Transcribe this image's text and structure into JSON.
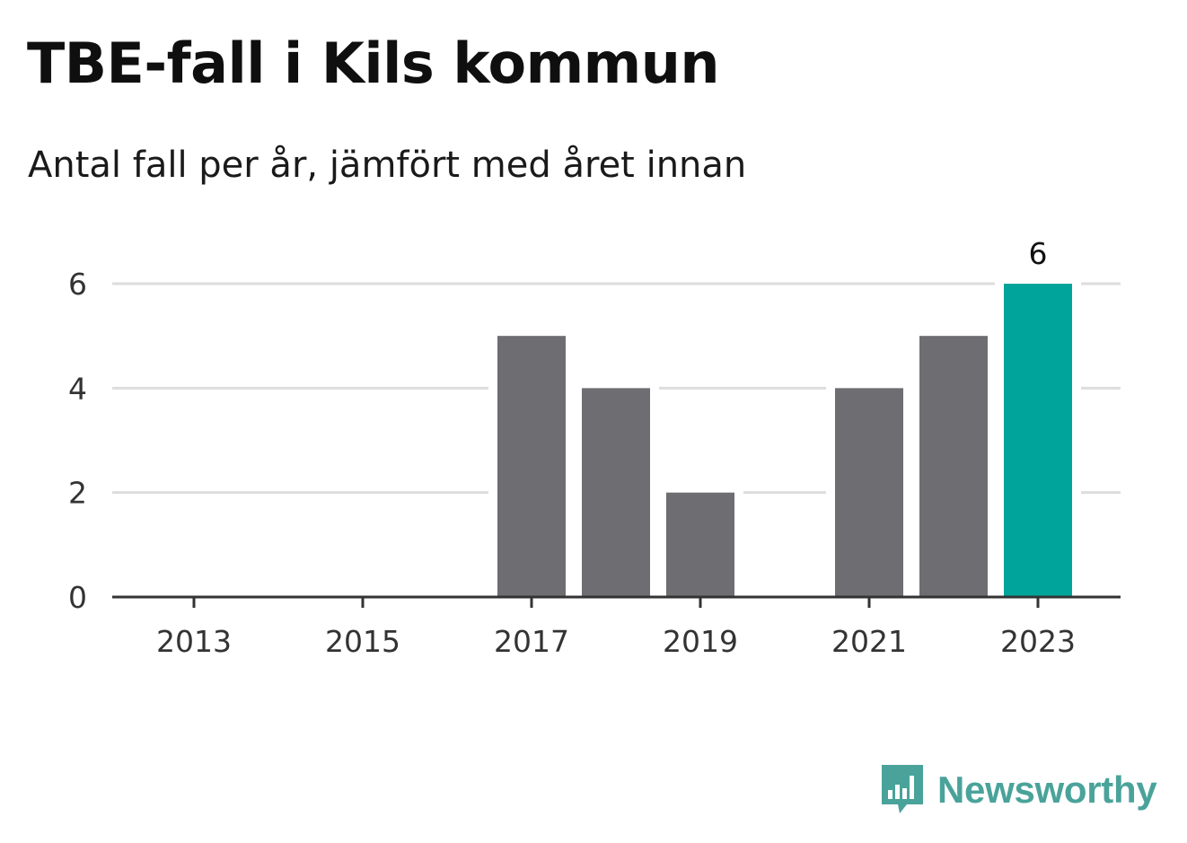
{
  "title": "TBE-fall i Kils kommun",
  "subtitle": "Antal fall per år, jämfört med året innan",
  "brand": {
    "name": "Newsworthy",
    "icon": "newsworthy-logo-icon",
    "color": "#4aa39a"
  },
  "colors": {
    "bar": "#6e6d72",
    "highlight": "#00a49a",
    "grid": "#dddddd",
    "axis": "#333333"
  },
  "chart_data": {
    "type": "bar",
    "categories": [
      "2013",
      "2014",
      "2015",
      "2016",
      "2017",
      "2018",
      "2019",
      "2020",
      "2021",
      "2022",
      "2023"
    ],
    "values": [
      0,
      0,
      0,
      0,
      5,
      4,
      2,
      0,
      4,
      5,
      6
    ],
    "highlight_index": 10,
    "x_tick_labels": [
      "2013",
      "2015",
      "2017",
      "2019",
      "2021",
      "2023"
    ],
    "y_ticks": [
      0,
      2,
      4,
      6
    ],
    "ylim": [
      0,
      6
    ],
    "data_labels": [
      {
        "category": "2023",
        "text": "6"
      }
    ],
    "title": "TBE-fall i Kils kommun",
    "subtitle": "Antal fall per år, jämfört med året innan",
    "xlabel": "",
    "ylabel": "",
    "grid": true,
    "legend": "none"
  }
}
